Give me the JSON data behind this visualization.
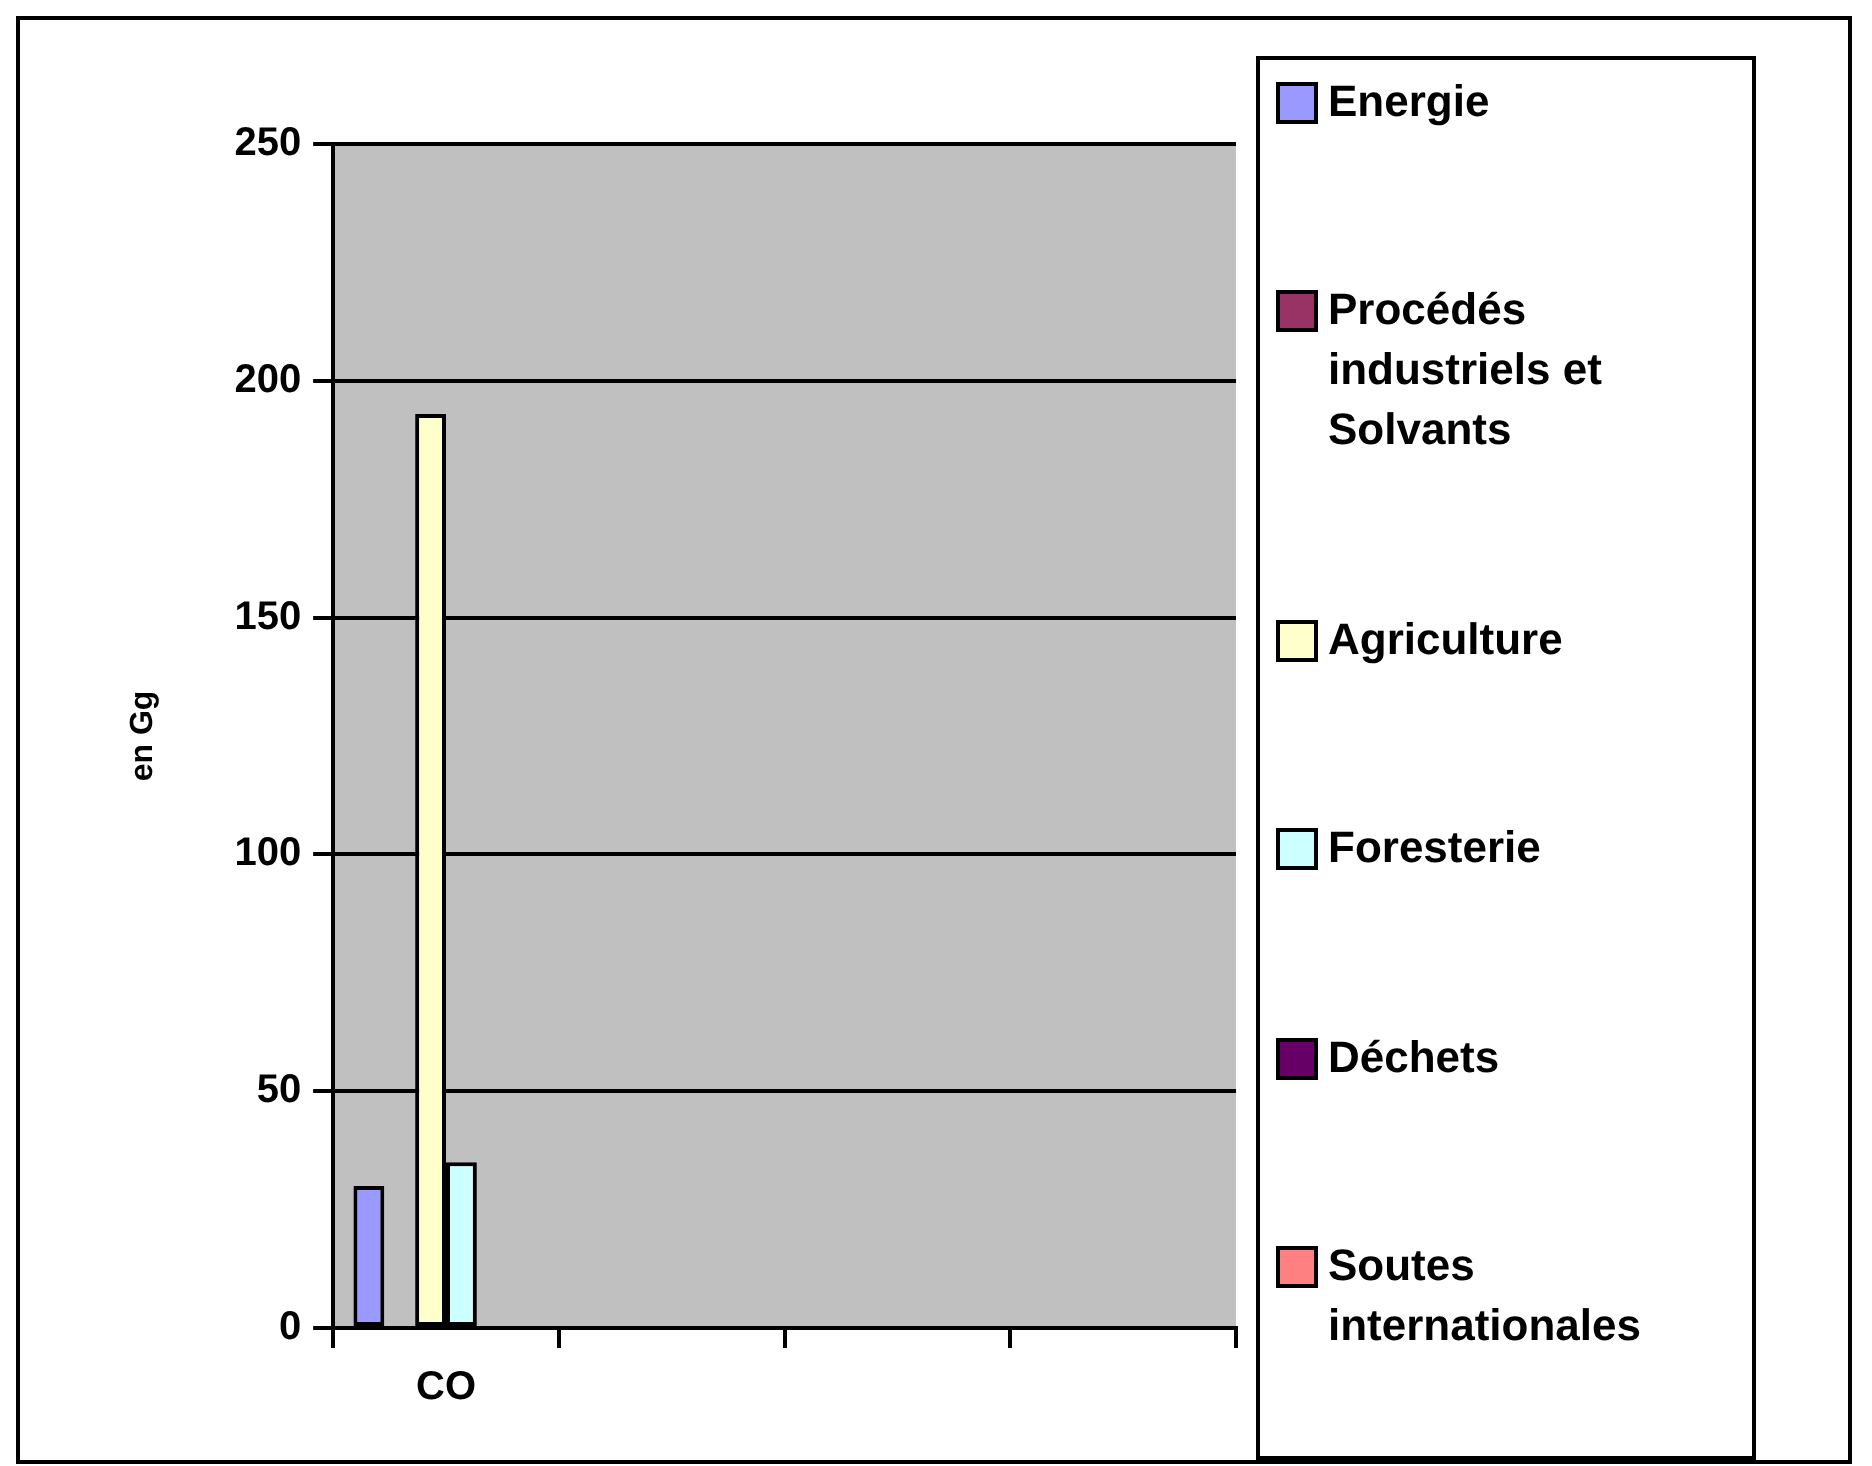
{
  "chart_data": {
    "type": "bar",
    "ylabel": "en Gg",
    "categories": [
      "CO",
      null,
      null,
      null
    ],
    "series": [
      {
        "name": "Energie",
        "color": "#9999ff",
        "values": [
          30,
          null,
          null,
          null
        ]
      },
      {
        "name": "Procédés industriels et Solvants",
        "color": "#993366",
        "values": [
          0,
          null,
          null,
          null
        ]
      },
      {
        "name": "Agriculture",
        "color": "#ffffcc",
        "values": [
          193,
          null,
          null,
          null
        ]
      },
      {
        "name": "Foresterie",
        "color": "#ccffff",
        "values": [
          35,
          null,
          null,
          null
        ]
      },
      {
        "name": "Déchets",
        "color": "#660066",
        "values": [
          0,
          null,
          null,
          null
        ]
      },
      {
        "name": "Soutes internationales",
        "color": "#ff8080",
        "values": [
          0,
          null,
          null,
          null
        ]
      }
    ],
    "ylim": [
      0,
      250
    ],
    "yticks": [
      0,
      50,
      100,
      150,
      200,
      250
    ],
    "grid": "y",
    "legend": "right"
  }
}
